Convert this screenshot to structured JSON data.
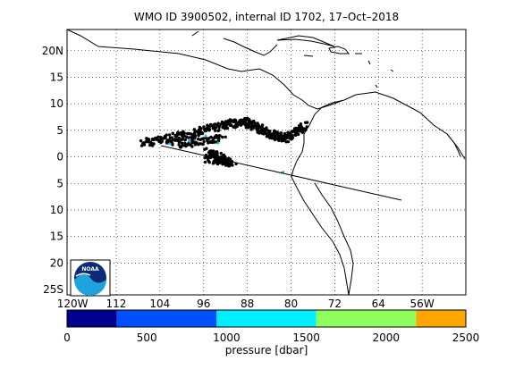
{
  "title": "WMO ID 3900502, internal ID 1702, 17–Oct–2018",
  "map": {
    "lon_range": [
      -121,
      -48
    ],
    "lat_range": [
      -26,
      24
    ],
    "lat_ticks": [
      "20N",
      "15",
      "10",
      "5",
      "0",
      "5",
      "10",
      "15",
      "20",
      "25S"
    ],
    "lon_ticks": [
      "120W",
      "112",
      "104",
      "96",
      "88",
      "80",
      "72",
      "64",
      "56W"
    ],
    "grid": "dotted",
    "float_track_color": "#000000",
    "trajectory_line_color": "#000000",
    "logo_text": "NOAA",
    "logo_colors": {
      "outer": "#ffffff",
      "sky": "#0a2a7a",
      "wave": "#1fa3dd"
    }
  },
  "colorbar": {
    "label": "pressure [dbar]",
    "ticks": [
      "0",
      "500",
      "1000",
      "1500",
      "2000",
      "2500"
    ],
    "bins": [
      {
        "from": 0,
        "to": 312,
        "color": "#00008f"
      },
      {
        "from": 312,
        "to": 938,
        "color": "#0050ff"
      },
      {
        "from": 938,
        "to": 1562,
        "color": "#00eeff"
      },
      {
        "from": 1562,
        "to": 2188,
        "color": "#90ff60"
      },
      {
        "from": 2188,
        "to": 2500,
        "color": "#ffa500"
      }
    ]
  }
}
